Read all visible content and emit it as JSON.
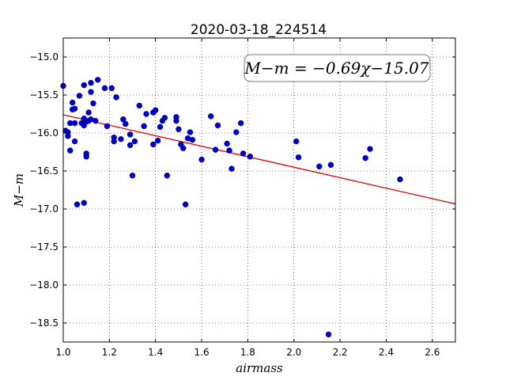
{
  "chart_data": {
    "type": "scatter",
    "title": "2020-03-18_224514",
    "xlabel": "airmass",
    "ylabel": "M−m",
    "xlim": [
      1.0,
      2.7
    ],
    "ylim": [
      -18.75,
      -14.75
    ],
    "xticks": [
      1.0,
      1.2,
      1.4,
      1.6,
      1.8,
      2.0,
      2.2,
      2.4,
      2.6
    ],
    "yticks": [
      -15.0,
      -15.5,
      -16.0,
      -16.5,
      -17.0,
      -17.5,
      -18.0,
      -18.5
    ],
    "grid": true,
    "annotation": "M−m = −0.69χ−15.07",
    "colors": {
      "points": "#0000cc",
      "fit": "#dd0000"
    },
    "series": [
      {
        "type": "scatter",
        "points": [
          [
            1.0,
            -15.38
          ],
          [
            1.01,
            -15.97
          ],
          [
            1.02,
            -16.04
          ],
          [
            1.02,
            -15.99
          ],
          [
            1.03,
            -16.23
          ],
          [
            1.03,
            -15.87
          ],
          [
            1.04,
            -15.6
          ],
          [
            1.04,
            -15.69
          ],
          [
            1.05,
            -15.68
          ],
          [
            1.05,
            -15.87
          ],
          [
            1.05,
            -16.11
          ],
          [
            1.06,
            -16.94
          ],
          [
            1.07,
            -15.51
          ],
          [
            1.08,
            -15.87
          ],
          [
            1.09,
            -15.9
          ],
          [
            1.09,
            -15.81
          ],
          [
            1.09,
            -15.37
          ],
          [
            1.09,
            -16.92
          ],
          [
            1.1,
            -16.31
          ],
          [
            1.1,
            -16.27
          ],
          [
            1.1,
            -15.85
          ],
          [
            1.11,
            -15.84
          ],
          [
            1.11,
            -15.73
          ],
          [
            1.12,
            -15.46
          ],
          [
            1.12,
            -15.82
          ],
          [
            1.12,
            -15.34
          ],
          [
            1.13,
            -15.61
          ],
          [
            1.14,
            -15.84
          ],
          [
            1.15,
            -15.3
          ],
          [
            1.18,
            -15.41
          ],
          [
            1.19,
            -15.91
          ],
          [
            1.21,
            -15.41
          ],
          [
            1.22,
            -16.06
          ],
          [
            1.22,
            -16.11
          ],
          [
            1.23,
            -15.53
          ],
          [
            1.25,
            -16.08
          ],
          [
            1.26,
            -15.82
          ],
          [
            1.27,
            -15.88
          ],
          [
            1.29,
            -16.16
          ],
          [
            1.29,
            -16.02
          ],
          [
            1.3,
            -16.56
          ],
          [
            1.31,
            -16.11
          ],
          [
            1.33,
            -15.64
          ],
          [
            1.35,
            -15.91
          ],
          [
            1.36,
            -15.75
          ],
          [
            1.39,
            -16.15
          ],
          [
            1.39,
            -15.73
          ],
          [
            1.4,
            -15.7
          ],
          [
            1.41,
            -16.1
          ],
          [
            1.42,
            -15.92
          ],
          [
            1.43,
            -15.84
          ],
          [
            1.44,
            -15.8
          ],
          [
            1.45,
            -16.56
          ],
          [
            1.49,
            -15.79
          ],
          [
            1.49,
            -15.84
          ],
          [
            1.5,
            -15.95
          ],
          [
            1.51,
            -16.15
          ],
          [
            1.52,
            -16.2
          ],
          [
            1.53,
            -16.94
          ],
          [
            1.54,
            -16.07
          ],
          [
            1.55,
            -15.99
          ],
          [
            1.56,
            -16.09
          ],
          [
            1.6,
            -16.35
          ],
          [
            1.64,
            -15.78
          ],
          [
            1.66,
            -16.22
          ],
          [
            1.67,
            -15.9
          ],
          [
            1.71,
            -16.14
          ],
          [
            1.72,
            -16.23
          ],
          [
            1.73,
            -16.47
          ],
          [
            1.75,
            -15.99
          ],
          [
            1.77,
            -15.87
          ],
          [
            1.78,
            -16.27
          ],
          [
            1.81,
            -16.31
          ],
          [
            2.01,
            -16.11
          ],
          [
            2.02,
            -16.32
          ],
          [
            2.11,
            -16.44
          ],
          [
            2.15,
            -18.65
          ],
          [
            2.16,
            -16.42
          ],
          [
            2.31,
            -16.33
          ],
          [
            2.33,
            -16.21
          ],
          [
            2.46,
            -16.61
          ]
        ]
      },
      {
        "type": "line",
        "points": [
          [
            1.0,
            -15.76
          ],
          [
            2.7,
            -16.933
          ]
        ]
      }
    ]
  }
}
